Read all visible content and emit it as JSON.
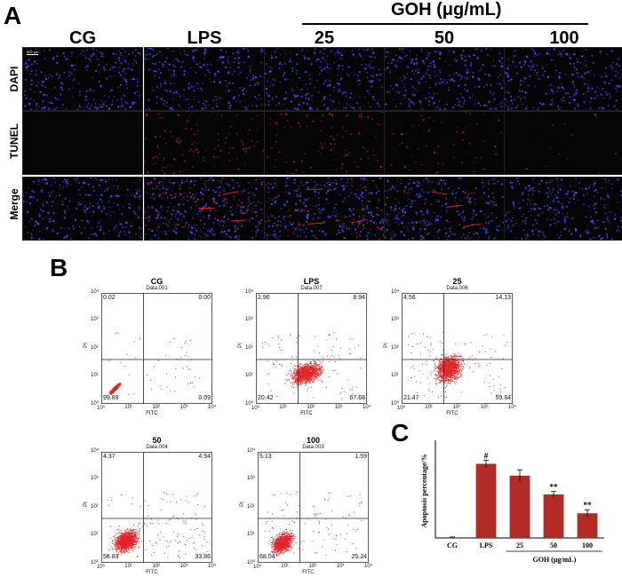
{
  "panel_a": {
    "letter": "A",
    "group_header": "GOH (μg/mL)",
    "columns": [
      "CG",
      "LPS",
      "25",
      "50",
      "100"
    ],
    "rows": [
      "DAPI",
      "TUNEL",
      "Merge"
    ],
    "scale_bar_label": "200 μm",
    "colors": {
      "dapi": "#4a4cff",
      "tunel": "#e0202a",
      "background": "#050508"
    },
    "tunel_density": [
      0.0,
      0.8,
      0.6,
      0.35,
      0.08
    ]
  },
  "panel_b": {
    "letter": "B",
    "axis_x": "FITC",
    "axis_y": "PI",
    "tick_labels": [
      "10⁰",
      "10¹",
      "10²",
      "10³",
      "10⁴"
    ],
    "plots": [
      {
        "title": "CG",
        "subtitle": "Data.001",
        "q_ul": "0.02",
        "q_ur": "0.00",
        "q_ll": "99.89",
        "q_lr": "0.09"
      },
      {
        "title": "LPS",
        "subtitle": "Data.007",
        "q_ul": "2.96",
        "q_ur": "8.94",
        "q_ll": "20.42",
        "q_lr": "67.68"
      },
      {
        "title": "25",
        "subtitle": "Data.006",
        "q_ul": "4.56",
        "q_ur": "14.13",
        "q_ll": "21.47",
        "q_lr": "59.84"
      },
      {
        "title": "50",
        "subtitle": "Data.004",
        "q_ul": "4.37",
        "q_ur": "4.94",
        "q_ll": "56.83",
        "q_lr": "33.86"
      },
      {
        "title": "100",
        "subtitle": "Data.003",
        "q_ul": "5.13",
        "q_ur": "1.59",
        "q_ll": "68.04",
        "q_lr": "25.24"
      }
    ],
    "dot_color": "#e0262a"
  },
  "chart_data": {
    "type": "bar",
    "categories": [
      "CG",
      "LPS",
      "25",
      "50",
      "100"
    ],
    "values": [
      0.5,
      63,
      53,
      37,
      21
    ],
    "errors": [
      0.3,
      3,
      5,
      2.5,
      3
    ],
    "annotations": [
      "",
      "#",
      "",
      "**",
      "**"
    ],
    "ylabel": "Apoptosis percentage/%",
    "xlabel": "GOH (μg/mL)",
    "ylim": [
      0,
      80
    ],
    "bar_color": "#b42a25",
    "letter": "C"
  }
}
